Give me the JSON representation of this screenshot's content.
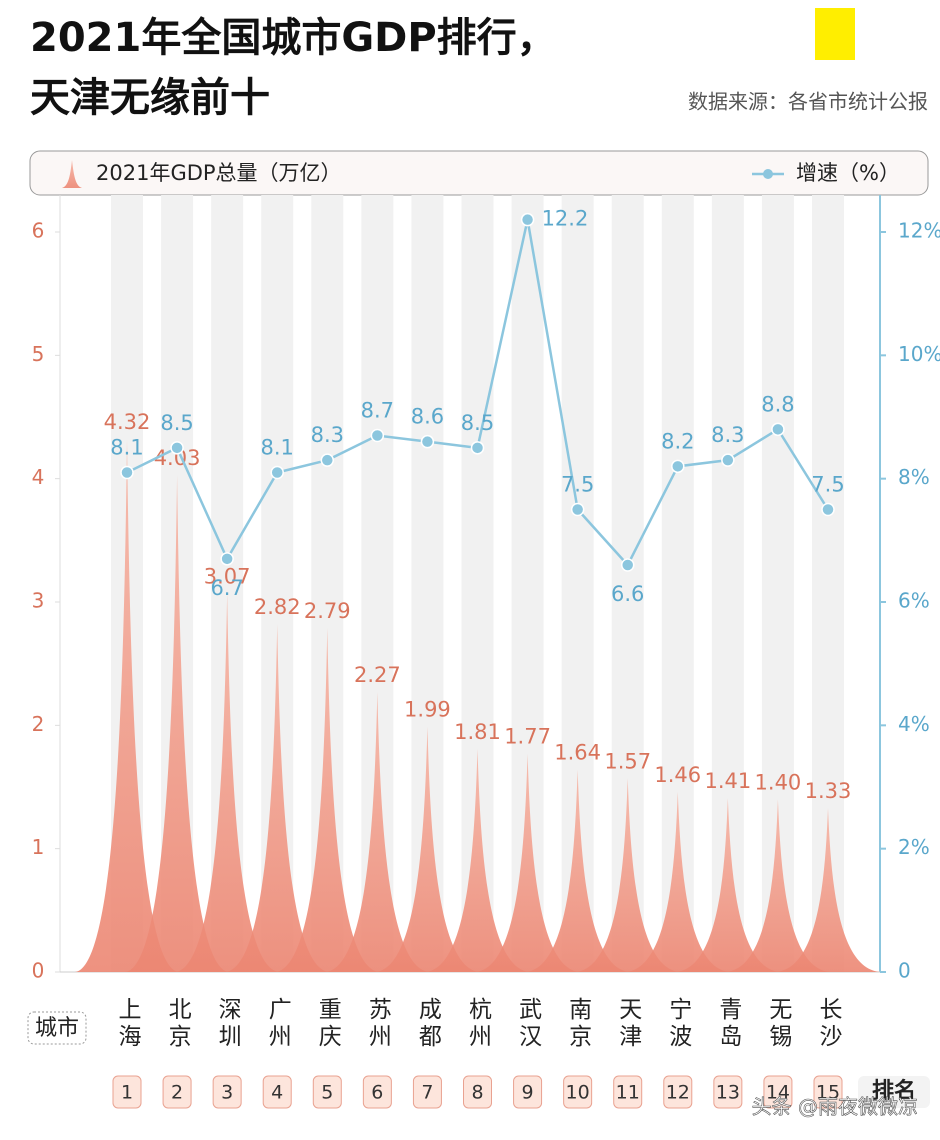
{
  "chart_data": {
    "type": "bar-line",
    "title": "2021年全国城市GDP排行，",
    "subtitle": "天津无缘前十",
    "source": "数据来源：各省市统计公报",
    "category_label": "城市",
    "rank_label": "排名",
    "watermark": "头条 @雨夜微微凉",
    "categories": [
      "上海",
      "北京",
      "深圳",
      "广州",
      "重庆",
      "苏州",
      "成都",
      "杭州",
      "武汉",
      "南京",
      "天津",
      "宁波",
      "青岛",
      "无锡",
      "长沙"
    ],
    "ranks": [
      1,
      2,
      3,
      4,
      5,
      6,
      7,
      8,
      9,
      10,
      11,
      12,
      13,
      14,
      15
    ],
    "series": [
      {
        "name": "2021年GDP总量（万亿）",
        "color": "#ef9280",
        "label_color": "#d8735b",
        "values": [
          4.32,
          4.03,
          3.07,
          2.82,
          2.79,
          2.27,
          1.99,
          1.81,
          1.77,
          1.64,
          1.57,
          1.46,
          1.41,
          1.4,
          1.33
        ],
        "value_labels": [
          "4.32",
          "4.03",
          "3.07",
          "2.82",
          "2.79",
          "2.27",
          "1.99",
          "1.81",
          "1.77",
          "1.64",
          "1.57",
          "1.46",
          "1.41",
          "1.40",
          "1.33"
        ]
      },
      {
        "name": "增速（%）",
        "color": "#8cc6de",
        "label_color": "#5aa7cb",
        "axis": "y2",
        "values": [
          8.1,
          8.5,
          6.7,
          8.1,
          8.3,
          8.7,
          8.6,
          8.5,
          12.2,
          7.5,
          6.6,
          8.2,
          8.3,
          8.8,
          7.5
        ]
      }
    ],
    "ylim": [
      0,
      6.3
    ],
    "yticks": [
      0,
      1,
      2,
      3,
      4,
      5,
      6
    ],
    "y2lim": [
      0,
      12.6
    ],
    "y2ticks": [
      0,
      {
        "value": 2,
        "label": "2%"
      },
      {
        "value": 4,
        "label": "4%"
      },
      {
        "value": 6,
        "label": "6%"
      },
      {
        "value": 8,
        "label": "8%"
      },
      {
        "value": 10,
        "label": "10%"
      },
      {
        "value": 12,
        "label": "12%"
      }
    ]
  }
}
